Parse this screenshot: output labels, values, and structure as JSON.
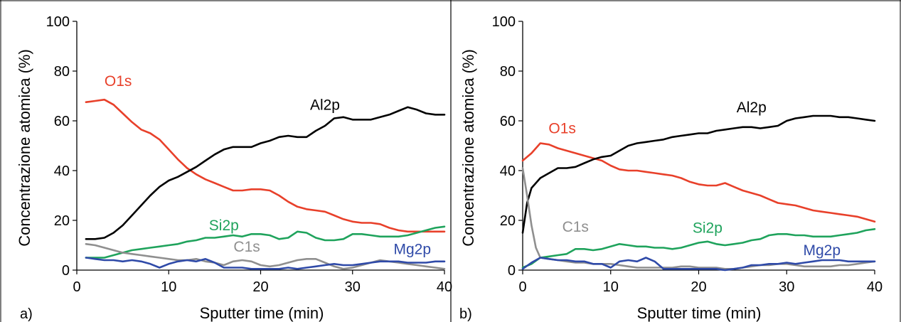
{
  "colors": {
    "Al2p": "#000000",
    "O1s": "#e8402a",
    "Si2p": "#1fa35c",
    "C1s": "#8f8f8f",
    "Mg2p": "#2f4aa8",
    "frame": "#000000"
  },
  "chart_data": [
    {
      "type": "line",
      "panel_label": "a)",
      "xlabel": "Sputter time (min)",
      "ylabel": "Concentrazione atomica (%)",
      "xlim": [
        0,
        40
      ],
      "ylim": [
        0,
        100
      ],
      "xticks": [
        0,
        10,
        20,
        30,
        40
      ],
      "yticks": [
        0,
        20,
        40,
        60,
        80,
        100
      ],
      "grid": false,
      "series": [
        {
          "name": "O1s",
          "color": "#e8402a",
          "x": [
            1,
            2,
            3,
            4,
            5,
            6,
            7,
            8,
            9,
            10,
            11,
            12,
            13,
            14,
            15,
            16,
            17,
            18,
            19,
            20,
            21,
            22,
            23,
            24,
            25,
            26,
            27,
            28,
            29,
            30,
            31,
            32,
            33,
            34,
            35,
            36,
            37,
            38,
            39,
            40
          ],
          "y": [
            67.5,
            68,
            68.5,
            66.5,
            63,
            59.5,
            56.5,
            55,
            52.5,
            48.5,
            44.5,
            41,
            38.5,
            36.5,
            35,
            33.5,
            32,
            32,
            32.5,
            32.5,
            32,
            30,
            27.5,
            25.5,
            24.5,
            24,
            23.5,
            22,
            20.5,
            19.5,
            19,
            19,
            18.5,
            17,
            16,
            15.5,
            15.5,
            15.5,
            15.5,
            15.5
          ]
        },
        {
          "name": "Al2p",
          "color": "#000000",
          "x": [
            1,
            2,
            3,
            4,
            5,
            6,
            7,
            8,
            9,
            10,
            11,
            12,
            13,
            14,
            15,
            16,
            17,
            18,
            19,
            20,
            21,
            22,
            23,
            24,
            25,
            26,
            27,
            28,
            29,
            30,
            31,
            32,
            33,
            34,
            35,
            36,
            37,
            38,
            39,
            40
          ],
          "y": [
            12.5,
            12.5,
            13,
            15,
            18,
            22,
            26,
            30,
            33.5,
            36,
            37.5,
            39.5,
            41.5,
            44,
            46.5,
            48.5,
            49.5,
            49.5,
            49.5,
            51,
            52,
            53.5,
            54,
            53.5,
            53.5,
            56,
            58,
            61,
            61.5,
            60.5,
            60.5,
            60.5,
            61.5,
            62.5,
            64,
            65.5,
            64.5,
            63,
            62.5,
            62.5
          ]
        },
        {
          "name": "Si2p",
          "color": "#1fa35c",
          "x": [
            1,
            2,
            3,
            4,
            5,
            6,
            7,
            8,
            9,
            10,
            11,
            12,
            13,
            14,
            15,
            16,
            17,
            18,
            19,
            20,
            21,
            22,
            23,
            24,
            25,
            26,
            27,
            28,
            29,
            30,
            31,
            32,
            33,
            34,
            35,
            36,
            37,
            38,
            39,
            40
          ],
          "y": [
            5,
            5,
            5,
            6,
            7,
            8,
            8.5,
            9,
            9.5,
            10,
            10.5,
            11.5,
            12,
            13,
            13,
            13.5,
            14,
            13.5,
            14.5,
            14.5,
            14,
            12.5,
            13,
            15.5,
            15,
            13,
            12,
            12,
            12.5,
            14.5,
            14.5,
            14,
            13.5,
            13.5,
            13.5,
            14,
            15,
            16,
            17,
            17.5
          ]
        },
        {
          "name": "C1s",
          "color": "#8f8f8f",
          "x": [
            1,
            2,
            3,
            4,
            5,
            6,
            7,
            8,
            9,
            10,
            11,
            12,
            13,
            14,
            15,
            16,
            17,
            18,
            19,
            20,
            21,
            22,
            23,
            24,
            25,
            26,
            27,
            28,
            29,
            30,
            31,
            32,
            33,
            34,
            35,
            36,
            37,
            38,
            39,
            40
          ],
          "y": [
            10.5,
            10,
            9,
            8,
            7,
            6.5,
            6,
            5.5,
            5,
            4.5,
            4,
            4,
            4.5,
            3.5,
            3,
            2,
            3.5,
            4,
            3.5,
            2,
            1.5,
            2,
            3,
            4,
            4.5,
            4.5,
            3,
            1.5,
            0.5,
            1,
            2,
            3,
            4,
            3.5,
            3,
            2.5,
            2,
            1.5,
            1,
            0.5
          ]
        },
        {
          "name": "Mg2p",
          "color": "#2f4aa8",
          "x": [
            1,
            2,
            3,
            4,
            5,
            6,
            7,
            8,
            9,
            10,
            11,
            12,
            13,
            14,
            15,
            16,
            17,
            18,
            19,
            20,
            21,
            22,
            23,
            24,
            25,
            26,
            27,
            28,
            29,
            30,
            31,
            32,
            33,
            34,
            35,
            36,
            37,
            38,
            39,
            40
          ],
          "y": [
            5,
            4.5,
            4,
            4,
            3.5,
            4,
            3.5,
            2.5,
            1,
            2.5,
            3.5,
            4,
            3.5,
            4.5,
            3,
            1,
            1,
            1,
            0.5,
            0.5,
            0.5,
            0.5,
            1,
            0.5,
            1,
            1.5,
            2,
            2.5,
            2,
            2,
            2.5,
            3,
            3.5,
            3.5,
            3.5,
            3,
            3,
            3,
            3.5,
            3.5
          ]
        }
      ],
      "labels": [
        {
          "text": "O1s",
          "series": "O1s",
          "x": 4.5,
          "y": 74
        },
        {
          "text": "Al2p",
          "series": "Al2p",
          "x": 27,
          "y": 64.5
        },
        {
          "text": "Si2p",
          "series": "Si2p",
          "x": 16,
          "y": 16
        },
        {
          "text": "C1s",
          "series": "C1s",
          "x": 18.5,
          "y": 7.5
        },
        {
          "text": "Mg2p",
          "series": "Mg2p",
          "x": 36.5,
          "y": 6.5
        }
      ]
    },
    {
      "type": "line",
      "panel_label": "b)",
      "xlabel": "Sputter time (min)",
      "ylabel": "Concentrazione atomica (%)",
      "xlim": [
        0,
        40
      ],
      "ylim": [
        0,
        100
      ],
      "xticks": [
        0,
        10,
        20,
        30,
        40
      ],
      "yticks": [
        0,
        20,
        40,
        60,
        80,
        100
      ],
      "grid": false,
      "series": [
        {
          "name": "O1s",
          "color": "#e8402a",
          "x": [
            0,
            1,
            2,
            3,
            4,
            5,
            6,
            7,
            8,
            9,
            10,
            11,
            12,
            13,
            14,
            15,
            16,
            17,
            18,
            19,
            20,
            21,
            22,
            23,
            24,
            25,
            26,
            27,
            28,
            29,
            30,
            31,
            32,
            33,
            34,
            35,
            36,
            37,
            38,
            39,
            40
          ],
          "y": [
            44,
            47,
            51,
            50.5,
            49,
            48,
            47,
            46,
            45,
            44,
            42,
            40.5,
            40,
            40,
            39.5,
            39,
            38.5,
            38,
            37,
            35.5,
            34.5,
            34,
            34,
            35,
            33.5,
            32,
            31,
            30,
            28.5,
            27,
            26.5,
            26,
            25,
            24,
            23.5,
            23,
            22.5,
            22,
            21.5,
            20.5,
            19.5
          ]
        },
        {
          "name": "Al2p",
          "color": "#000000",
          "x": [
            0,
            0.5,
            1,
            2,
            3,
            4,
            5,
            6,
            7,
            8,
            9,
            10,
            11,
            12,
            13,
            14,
            15,
            16,
            17,
            18,
            19,
            20,
            21,
            22,
            23,
            24,
            25,
            26,
            27,
            28,
            29,
            30,
            31,
            32,
            33,
            34,
            35,
            36,
            37,
            38,
            39,
            40
          ],
          "y": [
            15,
            27,
            33,
            37,
            39,
            41,
            41,
            41.5,
            43,
            44.5,
            45.5,
            46,
            48,
            50,
            51,
            51.5,
            52,
            52.5,
            53.5,
            54,
            54.5,
            55,
            55,
            56,
            56.5,
            57,
            57.5,
            57.5,
            57,
            57.5,
            58,
            60,
            61,
            61.5,
            62,
            62,
            62,
            61.5,
            61.5,
            61,
            60.5,
            60
          ]
        },
        {
          "name": "Si2p",
          "color": "#1fa35c",
          "x": [
            0,
            1,
            2,
            3,
            4,
            5,
            6,
            7,
            8,
            9,
            10,
            11,
            12,
            13,
            14,
            15,
            16,
            17,
            18,
            19,
            20,
            21,
            22,
            23,
            24,
            25,
            26,
            27,
            28,
            29,
            30,
            31,
            32,
            33,
            34,
            35,
            36,
            37,
            38,
            39,
            40
          ],
          "y": [
            1,
            2.5,
            5,
            5.5,
            6,
            6.5,
            8.5,
            8.5,
            8,
            8.5,
            9.5,
            10.5,
            10,
            9.5,
            9.5,
            9,
            9,
            8.5,
            9,
            10,
            11,
            11.5,
            10.5,
            10,
            10.5,
            11,
            12,
            12.5,
            14,
            14.5,
            14.5,
            14,
            14,
            13.5,
            13.5,
            13.5,
            14,
            14.5,
            15,
            16,
            16.5
          ]
        },
        {
          "name": "C1s",
          "color": "#8f8f8f",
          "x": [
            0,
            0.5,
            1,
            1.5,
            2,
            3,
            4,
            5,
            6,
            7,
            8,
            9,
            10,
            11,
            12,
            13,
            14,
            15,
            16,
            17,
            18,
            19,
            20,
            21,
            22,
            23,
            24,
            25,
            26,
            27,
            28,
            29,
            30,
            31,
            32,
            33,
            34,
            35,
            36,
            37,
            38,
            39,
            40
          ],
          "y": [
            41,
            30,
            18,
            9,
            5,
            4.5,
            4,
            3.5,
            3,
            3,
            2.5,
            2.5,
            2.5,
            2,
            1.5,
            1,
            1,
            1,
            1,
            1,
            1.5,
            1.5,
            1,
            1,
            1,
            0.5,
            0.5,
            1,
            1.5,
            2,
            2,
            2.5,
            2.5,
            2,
            1.5,
            1.5,
            1.5,
            1.5,
            2,
            2,
            2.5,
            3,
            3.5
          ]
        },
        {
          "name": "Mg2p",
          "color": "#2f4aa8",
          "x": [
            0,
            1,
            2,
            3,
            4,
            5,
            6,
            7,
            8,
            9,
            10,
            11,
            12,
            13,
            14,
            15,
            16,
            17,
            18,
            19,
            20,
            21,
            22,
            23,
            24,
            25,
            26,
            27,
            28,
            29,
            30,
            31,
            32,
            33,
            34,
            35,
            36,
            37,
            38,
            39,
            40
          ],
          "y": [
            0.5,
            3,
            5,
            4.5,
            4,
            4,
            3.5,
            3.5,
            2.5,
            2.5,
            1,
            3.5,
            4,
            3.5,
            5,
            3.5,
            0.5,
            0.5,
            0.5,
            0.5,
            0.5,
            0.5,
            0.5,
            0,
            0.5,
            1,
            2,
            2,
            2.5,
            2.5,
            3,
            2.5,
            3,
            3.5,
            4,
            4,
            4,
            3.5,
            3.5,
            3.5,
            3.5
          ]
        }
      ],
      "labels": [
        {
          "text": "O1s",
          "series": "O1s",
          "x": 4.5,
          "y": 55
        },
        {
          "text": "Al2p",
          "series": "Al2p",
          "x": 26,
          "y": 63.5
        },
        {
          "text": "Si2p",
          "series": "Si2p",
          "x": 21,
          "y": 15
        },
        {
          "text": "C1s",
          "series": "C1s",
          "x": 6,
          "y": 15.5
        },
        {
          "text": "Mg2p",
          "series": "Mg2p",
          "x": 34,
          "y": 6
        }
      ]
    }
  ]
}
